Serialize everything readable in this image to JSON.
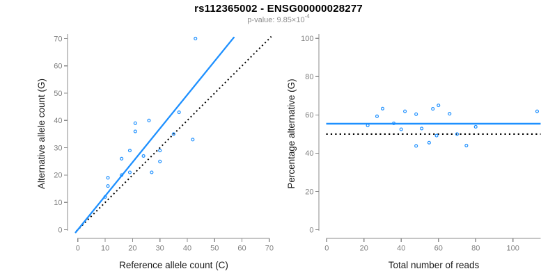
{
  "header": {
    "title": "rs112365002 - ENSG00000028277",
    "pvalue_prefix": "p-value: 9.85×10",
    "pvalue_exponent": "-4"
  },
  "colors": {
    "accent_blue": "#1E90FF",
    "line_black": "#000000",
    "axis_gray": "#8B8B8B",
    "tick_label_gray": "#7E7E7E",
    "axis_label_dark": "#1A1A1A",
    "subtitle_gray": "#8C8C8C",
    "background": "#FFFFFF"
  },
  "chart_data": [
    {
      "type": "scatter",
      "panel": "left",
      "xlabel": "Reference allele count (C)",
      "ylabel": "Alternative allele count (G)",
      "xlim": [
        0,
        70
      ],
      "ylim": [
        0,
        70
      ],
      "xticks": [
        0,
        10,
        20,
        30,
        40,
        50,
        60,
        70
      ],
      "yticks": [
        0,
        10,
        20,
        30,
        40,
        50,
        60,
        70
      ],
      "grid": false,
      "legend": "none",
      "marker": "open-circle",
      "points": [
        [
          10,
          12
        ],
        [
          11,
          16
        ],
        [
          11,
          19
        ],
        [
          16,
          20
        ],
        [
          16,
          26
        ],
        [
          19,
          21
        ],
        [
          19,
          29
        ],
        [
          21,
          36
        ],
        [
          21,
          39
        ],
        [
          24,
          27
        ],
        [
          26,
          40
        ],
        [
          27,
          21
        ],
        [
          30,
          25
        ],
        [
          30,
          29
        ],
        [
          35,
          35
        ],
        [
          37,
          43
        ],
        [
          42,
          33
        ],
        [
          43,
          70
        ]
      ],
      "fit_line": {
        "style": "solid",
        "from": [
          0,
          0
        ],
        "to": [
          56.7,
          70
        ]
      },
      "identity_line": {
        "style": "dotted",
        "from": [
          0,
          0
        ],
        "to": [
          70,
          70
        ]
      }
    },
    {
      "type": "scatter",
      "panel": "right",
      "xlabel": "Total number of reads",
      "ylabel": "Percentage alternative (G)",
      "xlim": [
        0,
        115
      ],
      "ylim": [
        0,
        100
      ],
      "xticks": [
        0,
        20,
        40,
        60,
        80,
        100
      ],
      "yticks": [
        0,
        20,
        40,
        60,
        80,
        100
      ],
      "grid": false,
      "legend": "none",
      "marker": "open-circle",
      "points": [
        [
          22,
          54.5
        ],
        [
          27,
          59.3
        ],
        [
          30,
          63.3
        ],
        [
          36,
          55.6
        ],
        [
          40,
          52.5
        ],
        [
          42,
          61.9
        ],
        [
          48,
          43.8
        ],
        [
          48,
          60.4
        ],
        [
          51,
          52.9
        ],
        [
          55,
          45.5
        ],
        [
          57,
          63.2
        ],
        [
          59,
          49.2
        ],
        [
          60,
          65
        ],
        [
          66,
          60.6
        ],
        [
          70,
          50
        ],
        [
          75,
          44
        ],
        [
          80,
          53.8
        ],
        [
          113,
          61.9
        ]
      ],
      "mean_line": {
        "style": "solid",
        "y": 55.4
      },
      "reference_line": {
        "style": "dotted",
        "y": 50
      }
    }
  ]
}
